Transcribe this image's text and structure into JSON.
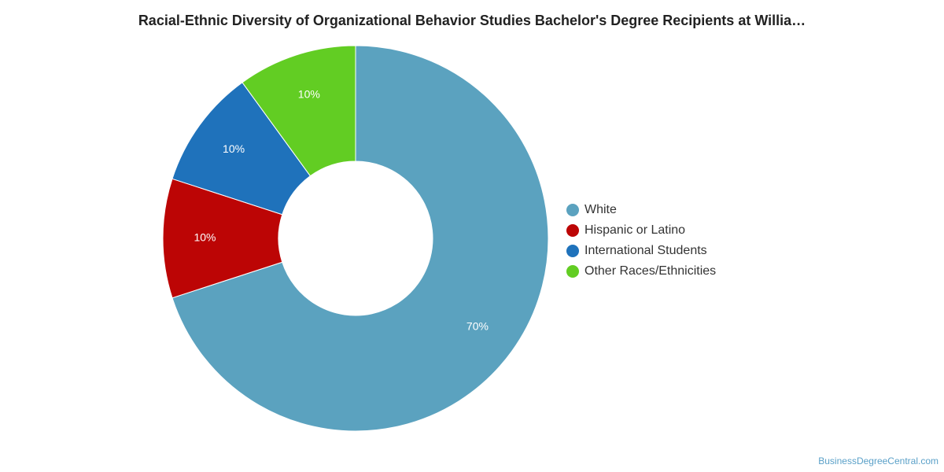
{
  "chart_data": {
    "type": "pie",
    "variant": "donut",
    "title": "Racial-Ethnic Diversity of Organizational Behavior Studies Bachelor's Degree Recipients at Willia…",
    "slices": [
      {
        "name": "White",
        "value": 70,
        "label": "70%",
        "color": "#5ba2bf"
      },
      {
        "name": "Hispanic or Latino",
        "value": 10,
        "label": "10%",
        "color": "#bc0505"
      },
      {
        "name": "International Students",
        "value": 10,
        "label": "10%",
        "color": "#1f72bb"
      },
      {
        "name": "Other Races/Ethnicities",
        "value": 10,
        "label": "10%",
        "color": "#62cd23"
      }
    ],
    "legend_position": "right"
  },
  "credit": "BusinessDegreeCentral.com"
}
